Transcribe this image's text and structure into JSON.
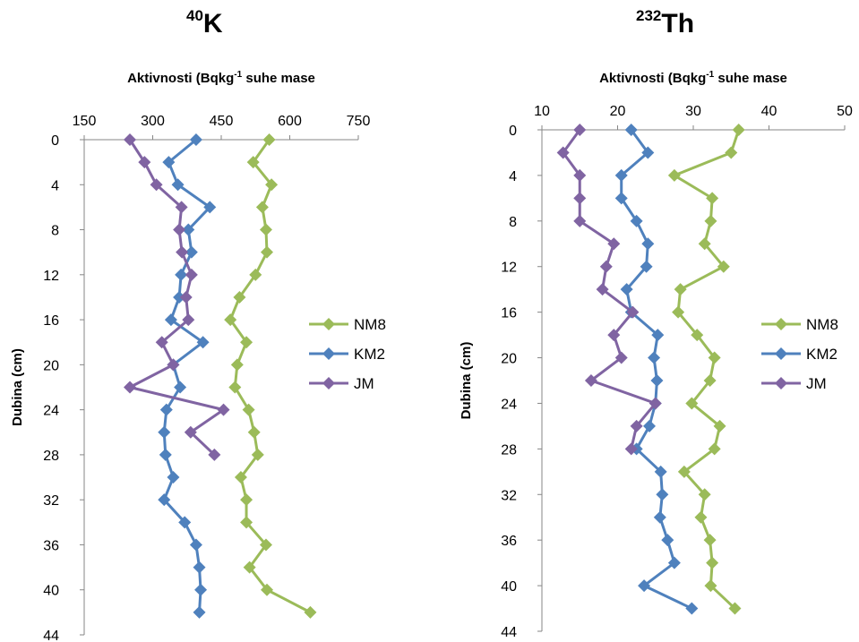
{
  "charts": [
    {
      "title_sup": "40",
      "title_main": "K",
      "xlabel": "Aktivnosti (Bqkg",
      "xlabel_sup": "-1",
      "xlabel_tail": " suhe mase",
      "ylabel": "Dubina (cm)"
    },
    {
      "title_sup": "232",
      "title_main": "Th",
      "xlabel": "Aktivnosti (Bqkg",
      "xlabel_sup": "-1",
      "xlabel_tail": " suhe mase",
      "ylabel": "Dubina (cm)"
    }
  ],
  "chart_data": [
    {
      "type": "line",
      "title": "40K",
      "xlabel": "Aktivnosti (Bqkg-1 suhe mase",
      "ylabel": "Dubina (cm)",
      "xlim": [
        150,
        750
      ],
      "xticks": [
        150,
        300,
        450,
        600,
        750
      ],
      "ylim": [
        0,
        44
      ],
      "yticks": [
        0,
        4,
        8,
        12,
        16,
        20,
        24,
        28,
        32,
        36,
        40,
        44
      ],
      "y_inverted": true,
      "x_axis_position": "top",
      "legend": "right",
      "series": [
        {
          "name": "NM8",
          "color": "#9bbb59",
          "depth": [
            0,
            2,
            4,
            6,
            8,
            10,
            12,
            14,
            16,
            18,
            20,
            22,
            24,
            26,
            28,
            30,
            32,
            34,
            36,
            38,
            40,
            42
          ],
          "values": [
            555,
            520,
            560,
            540,
            548,
            550,
            525,
            490,
            470,
            505,
            485,
            480,
            510,
            522,
            530,
            493,
            505,
            505,
            548,
            512,
            550,
            645
          ]
        },
        {
          "name": "KM2",
          "color": "#4f81bd",
          "depth": [
            0,
            2,
            4,
            6,
            8,
            10,
            12,
            14,
            16,
            18,
            20,
            22,
            24,
            26,
            28,
            30,
            32,
            34,
            36,
            38,
            40,
            42
          ],
          "values": [
            395,
            335,
            355,
            425,
            378,
            385,
            362,
            358,
            340,
            410,
            345,
            360,
            330,
            325,
            328,
            345,
            325,
            370,
            395,
            402,
            405,
            402
          ]
        },
        {
          "name": "JM",
          "color": "#8064a2",
          "depth": [
            0,
            2,
            4,
            6,
            8,
            10,
            12,
            14,
            16,
            18,
            20,
            22,
            24,
            26,
            28
          ],
          "values": [
            250,
            282,
            308,
            363,
            358,
            364,
            385,
            373,
            378,
            320,
            345,
            250,
            455,
            383,
            435
          ]
        }
      ]
    },
    {
      "type": "line",
      "title": "232Th",
      "xlabel": "Aktivnosti (Bqkg-1 suhe mase",
      "ylabel": "Dubina (cm)",
      "xlim": [
        10,
        50
      ],
      "xticks": [
        10,
        20,
        30,
        40,
        50
      ],
      "ylim": [
        0,
        44
      ],
      "yticks": [
        0,
        4,
        8,
        12,
        16,
        20,
        24,
        28,
        32,
        36,
        40,
        44
      ],
      "y_inverted": true,
      "x_axis_position": "top",
      "legend": "right",
      "series": [
        {
          "name": "NM8",
          "color": "#9bbb59",
          "depth": [
            0,
            2,
            4,
            6,
            8,
            10,
            12,
            14,
            16,
            18,
            20,
            22,
            24,
            26,
            28,
            30,
            32,
            34,
            36,
            38,
            40,
            42
          ],
          "values": [
            36,
            35,
            27.5,
            32.5,
            32.3,
            31.5,
            34,
            28.3,
            28,
            30.5,
            32.8,
            32.2,
            29.8,
            33.5,
            32.8,
            28.8,
            31.5,
            31,
            32.2,
            32.5,
            32.3,
            35.5
          ]
        },
        {
          "name": "KM2",
          "color": "#4f81bd",
          "depth": [
            0,
            2,
            4,
            6,
            8,
            10,
            12,
            14,
            16,
            18,
            20,
            22,
            24,
            26,
            28,
            30,
            32,
            34,
            36,
            38,
            40,
            42
          ],
          "values": [
            21.8,
            24,
            20.5,
            20.5,
            22.5,
            24,
            23.8,
            21.2,
            21.8,
            25.3,
            24.8,
            25.2,
            25,
            24.2,
            22.5,
            25.7,
            25.9,
            25.6,
            26.6,
            27.5,
            23.5,
            29.8
          ]
        },
        {
          "name": "JM",
          "color": "#8064a2",
          "depth": [
            0,
            2,
            4,
            6,
            8,
            10,
            12,
            14,
            16,
            18,
            20,
            22,
            24,
            26,
            28
          ],
          "values": [
            15,
            12.8,
            15,
            15,
            15,
            19.5,
            18.5,
            18,
            22,
            19.5,
            20.5,
            16.5,
            25,
            22.5,
            21.8
          ]
        }
      ]
    }
  ]
}
